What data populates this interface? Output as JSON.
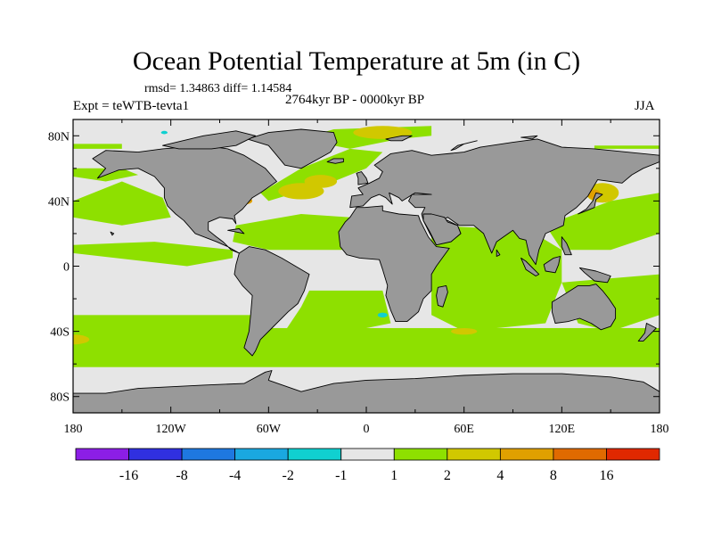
{
  "title": "Ocean Potential Temperature at 5m (in C)",
  "stats": "rmsd= 1.34863 diff= 1.14584",
  "period": "2764kyr BP - 0000kyr BP",
  "experiment": "Expt = teWTB-tevta1",
  "season": "JJA",
  "map": {
    "projection": "cylindrical equidistant",
    "lon_range": [
      -180,
      180
    ],
    "lat_range": [
      -90,
      90
    ],
    "lat_ticks": [
      {
        "value": 80,
        "label": "80N"
      },
      {
        "value": 40,
        "label": "40N"
      },
      {
        "value": 0,
        "label": "0"
      },
      {
        "value": -40,
        "label": "40S"
      },
      {
        "value": -80,
        "label": "80S"
      }
    ],
    "lon_ticks": [
      {
        "value": -180,
        "label": "180"
      },
      {
        "value": -120,
        "label": "120W"
      },
      {
        "value": -60,
        "label": "60W"
      },
      {
        "value": 0,
        "label": "0"
      },
      {
        "value": 60,
        "label": "60E"
      },
      {
        "value": 120,
        "label": "120E"
      },
      {
        "value": 180,
        "label": "180"
      }
    ],
    "colors": {
      "land": "#999999",
      "ocean_neutral": "#e6e6e6",
      "ocean_warm1": "#8ee000",
      "ocean_warm2": "#d1c800",
      "ocean_warm3": "#e0a000",
      "ocean_cool": "#0fd0d0"
    }
  },
  "colorbar": {
    "labels": [
      "-16",
      "-8",
      "-4",
      "-2",
      "-1",
      "1",
      "2",
      "4",
      "8",
      "16"
    ],
    "colors": [
      "#8c1ee6",
      "#3030e0",
      "#1e78e0",
      "#1aa8e0",
      "#10d0d0",
      "#e6e6e6",
      "#8ee000",
      "#d1c800",
      "#e0a000",
      "#e06a00",
      "#e02800"
    ]
  }
}
